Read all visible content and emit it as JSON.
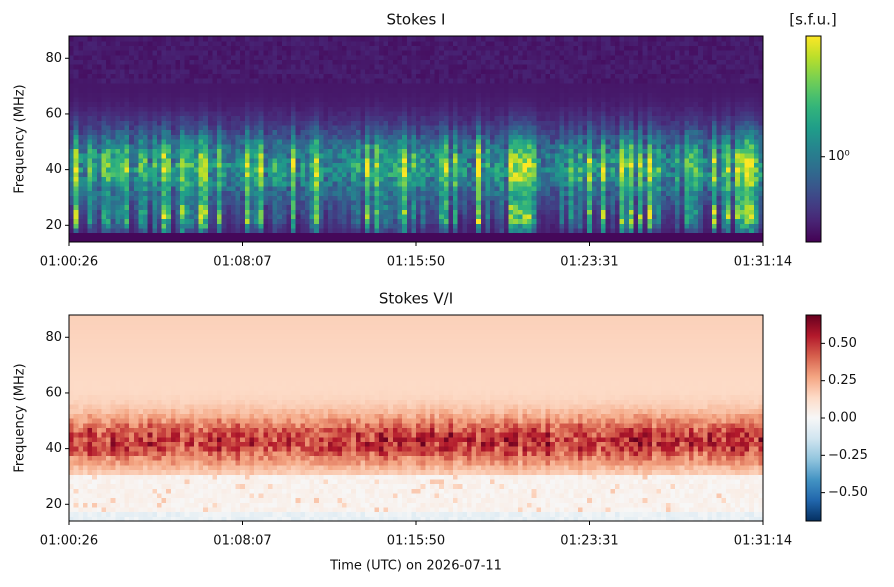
{
  "chart_data": [
    {
      "type": "spectrogram",
      "title": "Stokes I",
      "ylabel": "Frequency (MHz)",
      "xticks": [
        "01:00:26",
        "01:08:07",
        "01:15:50",
        "01:23:31",
        "01:31:14"
      ],
      "ylim": [
        14,
        88
      ],
      "yticks": [
        20,
        40,
        60,
        80
      ],
      "colormap": "viridis",
      "colorbar": {
        "label": "[s.f.u.]",
        "scale": "log",
        "lim": [
          0.3,
          5.5
        ],
        "ticks": [
          {
            "value": 1,
            "label": "10⁰"
          }
        ]
      }
    },
    {
      "type": "spectrogram",
      "title": "Stokes V/I",
      "ylabel": "Frequency (MHz)",
      "xlabel": "Time (UTC) on 2026-07-11",
      "xticks": [
        "01:00:26",
        "01:08:07",
        "01:15:50",
        "01:23:31",
        "01:31:14"
      ],
      "ylim": [
        14,
        88
      ],
      "yticks": [
        20,
        40,
        60,
        80
      ],
      "colormap": "RdBu_r",
      "colorbar": {
        "scale": "linear",
        "lim": [
          -0.69,
          0.69
        ],
        "ticks": [
          {
            "value": -0.5,
            "label": "−0.50"
          },
          {
            "value": -0.25,
            "label": "−0.25"
          },
          {
            "value": 0,
            "label": "0.00"
          },
          0.25,
          {
            "value": 0.5,
            "label": "0.50"
          }
        ]
      }
    }
  ]
}
